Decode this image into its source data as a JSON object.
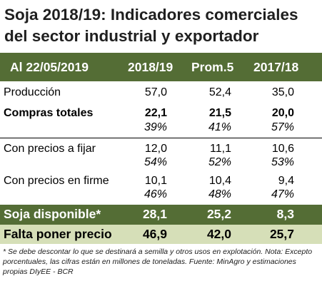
{
  "title": {
    "line1": "Soja 2018/19: Indicadores comerciales",
    "line2": "del sector industrial y exportador"
  },
  "header": {
    "date_label": "Al 22/05/2019",
    "col1": "2018/19",
    "col2": "Prom.5",
    "col3": "2017/18"
  },
  "rows": {
    "produccion": {
      "label": "Producción",
      "v1": "57,0",
      "v2": "52,4",
      "v3": "35,0"
    },
    "compras_totales": {
      "label": "Compras totales",
      "v1": "22,1",
      "v2": "21,5",
      "v3": "20,0",
      "p1": "39%",
      "p2": "41%",
      "p3": "57%"
    },
    "precios_fijar": {
      "label": "Con precios a fijar",
      "v1": "12,0",
      "v2": "11,1",
      "v3": "10,6",
      "p1": "54%",
      "p2": "52%",
      "p3": "53%"
    },
    "precios_firme": {
      "label": "Con precios en firme",
      "v1": "10,1",
      "v2": "10,4",
      "v3": "9,4",
      "p1": "46%",
      "p2": "48%",
      "p3": "47%"
    },
    "soja_disponible": {
      "label": "Soja disponible*",
      "v1": "28,1",
      "v2": "25,2",
      "v3": "8,3"
    },
    "falta_precio": {
      "label": "Falta poner precio",
      "v1": "46,9",
      "v2": "42,0",
      "v3": "25,7"
    }
  },
  "footnote": "* Se debe descontar lo que se destinará a semilla y otros usos en explotación. Nota: Excepto porcentuales, las cifras están en millones de toneladas. Fuente: MinAgro y estimaciones propias DIyEE - BCR",
  "colors": {
    "dark_green": "#546d35",
    "light_green": "#d6dfb8"
  }
}
